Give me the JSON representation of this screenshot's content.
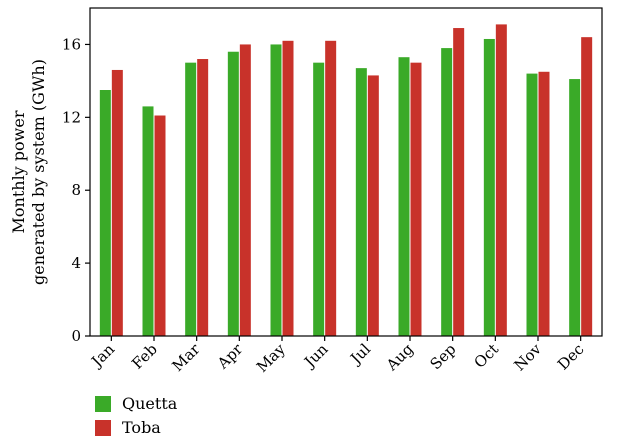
{
  "chart_data": {
    "type": "bar",
    "categories": [
      "Jan",
      "Feb",
      "Mar",
      "Apr",
      "May",
      "Jun",
      "Jul",
      "Aug",
      "Sep",
      "Oct",
      "Nov",
      "Dec"
    ],
    "series": [
      {
        "name": "Quetta",
        "color": "#3aaa28",
        "values": [
          13.5,
          12.6,
          15.0,
          15.6,
          16.0,
          15.0,
          14.7,
          15.3,
          15.8,
          16.3,
          14.4,
          14.1
        ]
      },
      {
        "name": "Toba",
        "color": "#c8322a",
        "values": [
          14.6,
          12.1,
          15.2,
          16.0,
          16.2,
          16.2,
          14.3,
          15.0,
          16.9,
          17.1,
          14.5,
          16.4
        ]
      }
    ],
    "ylabel_lines": [
      "Monthly power",
      "generated by system (GWh)"
    ],
    "xlabel": "",
    "title": "",
    "ylim": [
      0,
      18
    ],
    "yticks": [
      0,
      4,
      8,
      12,
      16
    ],
    "grid": false,
    "legend_position": "bottom-left"
  }
}
